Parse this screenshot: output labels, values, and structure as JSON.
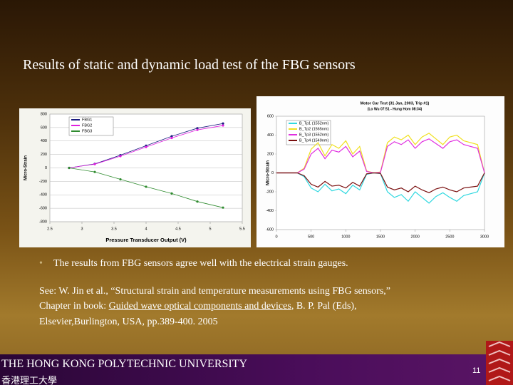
{
  "title": "Results of static and dynamic load test of the FBG sensors",
  "chart_data": [
    {
      "type": "line",
      "xlabel": "Pressure Transducer Output (V)",
      "ylabel": "Micro-Strain",
      "x": [
        2.8,
        3.2,
        3.6,
        4.0,
        4.4,
        4.8,
        5.2
      ],
      "series": [
        {
          "name": "FBG1",
          "color": "#1a1a80",
          "values": [
            0,
            60,
            190,
            330,
            470,
            590,
            660
          ]
        },
        {
          "name": "FBG2",
          "color": "#e020e0",
          "values": [
            0,
            55,
            175,
            310,
            445,
            565,
            630
          ]
        },
        {
          "name": "FBG3",
          "color": "#2e8b2e",
          "values": [
            0,
            -60,
            -170,
            -280,
            -380,
            -500,
            -590
          ]
        }
      ],
      "xlim": [
        2.5,
        5.5
      ],
      "xticks": [
        2.5,
        3,
        3.5,
        4,
        4.5,
        5,
        5.5
      ],
      "ylim": [
        -800,
        800
      ],
      "yticks": [
        -800,
        -600,
        -400,
        -200,
        0,
        200,
        400,
        600,
        800
      ],
      "grid": true
    },
    {
      "type": "line",
      "title": "Motor Car Test (31 Jan, 2003, Trip #1)",
      "subtitle": "(Lo Wu 07:51 - Hung Hom 08:34)",
      "ylabel": "Micro-Strain",
      "x": [
        0,
        100,
        200,
        300,
        400,
        500,
        600,
        700,
        800,
        900,
        1000,
        1100,
        1200,
        1300,
        1400,
        1500,
        1600,
        1700,
        1800,
        1900,
        2000,
        2100,
        2200,
        2300,
        2400,
        2500,
        2600,
        2700,
        2800,
        2900,
        3000
      ],
      "series": [
        {
          "name": "B_Tp1 (1552nm)",
          "color": "#30d8e0",
          "values": [
            0,
            0,
            0,
            0,
            -40,
            -160,
            -200,
            -120,
            -190,
            -170,
            -220,
            -130,
            -180,
            -15,
            0,
            -8,
            -200,
            -260,
            -230,
            -300,
            -200,
            -260,
            -320,
            -250,
            -210,
            -260,
            -300,
            -240,
            -220,
            -200,
            0
          ]
        },
        {
          "name": "B_Tp2 (1565nm)",
          "color": "#f0e020",
          "values": [
            0,
            0,
            0,
            0,
            50,
            250,
            320,
            180,
            300,
            260,
            340,
            200,
            280,
            20,
            0,
            10,
            320,
            380,
            350,
            400,
            300,
            380,
            420,
            360,
            300,
            380,
            400,
            340,
            320,
            300,
            0
          ]
        },
        {
          "name": "B_Tp3 (1552nm)",
          "color": "#e030e0",
          "values": [
            0,
            0,
            0,
            0,
            40,
            200,
            260,
            150,
            240,
            220,
            280,
            170,
            230,
            15,
            0,
            5,
            280,
            330,
            300,
            350,
            260,
            330,
            360,
            310,
            260,
            330,
            350,
            300,
            280,
            260,
            0
          ]
        },
        {
          "name": "B_Tp4 (1549nm)",
          "color": "#7a1010",
          "values": [
            0,
            0,
            0,
            0,
            -30,
            -120,
            -150,
            -90,
            -140,
            -130,
            -160,
            -100,
            -140,
            -10,
            0,
            -5,
            -150,
            -180,
            -160,
            -200,
            -140,
            -180,
            -210,
            -170,
            -150,
            -180,
            -200,
            -160,
            -150,
            -140,
            0
          ]
        }
      ],
      "xlim": [
        0,
        3000
      ],
      "xticks": [
        0,
        500,
        1000,
        1500,
        2000,
        2500,
        3000
      ],
      "ylim": [
        -600,
        600
      ],
      "yticks": [
        -600,
        -400,
        -200,
        0,
        200,
        400,
        600
      ],
      "grid": false
    }
  ],
  "bullet": "The results from FBG sensors agree well with the electrical strain gauges.",
  "reference": {
    "line1": "See: W. Jin et al., “Structural strain and temperature measurements using FBG sensors,”",
    "line2_prefix": "Chapter in book: ",
    "book": "Guided wave optical components and devices",
    "line2_suffix": ", B. P. Pal (Eds),",
    "line3": "Elsevier,Burlington, USA, pp.389-400. 2005"
  },
  "footer": {
    "university": "THE HONG KONG POLYTECHNIC UNIVERSITY",
    "chinese": "香港理工大學",
    "page": 11
  }
}
